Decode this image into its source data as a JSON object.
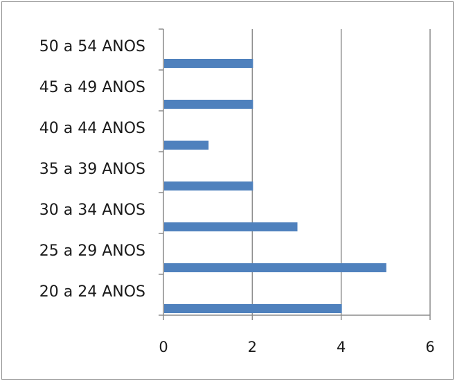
{
  "chart_data": {
    "type": "bar",
    "orientation": "horizontal",
    "categories": [
      "20 a 24 ANOS",
      "25 a 29 ANOS",
      "30 a 34 ANOS",
      "35 a 39 ANOS",
      "40 a 44 ANOS",
      "45 a 49 ANOS",
      "50 a 54 ANOS"
    ],
    "values": [
      4,
      5,
      3,
      2,
      1,
      2,
      2
    ],
    "title": "",
    "xlabel": "",
    "ylabel": "",
    "xlim": [
      0,
      6
    ],
    "xticks": [
      0,
      2,
      4,
      6
    ],
    "grid": "vertical",
    "legend": "none",
    "bar_color": "#4f81bd",
    "axis_color": "#8c8c8c",
    "gridline_color": "#8c8c8c"
  }
}
